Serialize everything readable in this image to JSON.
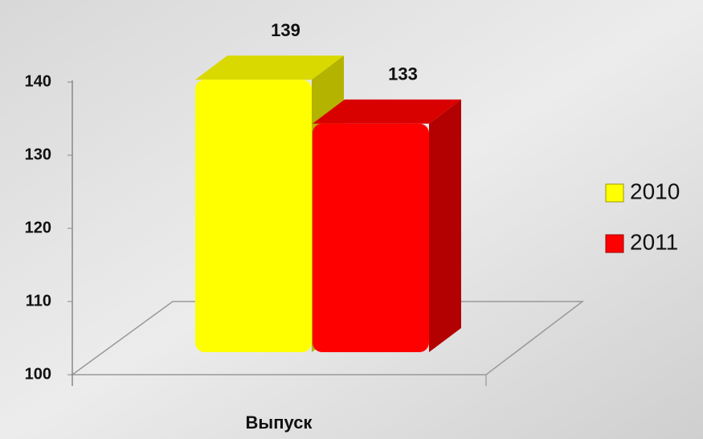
{
  "chart_data": {
    "type": "bar3d",
    "categories": [
      "Выпуск"
    ],
    "series": [
      {
        "name": "2010",
        "color": "#ffff00",
        "values": [
          139
        ]
      },
      {
        "name": "2011",
        "color": "#ff0000",
        "values": [
          133
        ]
      }
    ],
    "ylim": [
      100,
      140
    ],
    "yticks": [
      100,
      110,
      120,
      130,
      140
    ],
    "legend": "right"
  }
}
